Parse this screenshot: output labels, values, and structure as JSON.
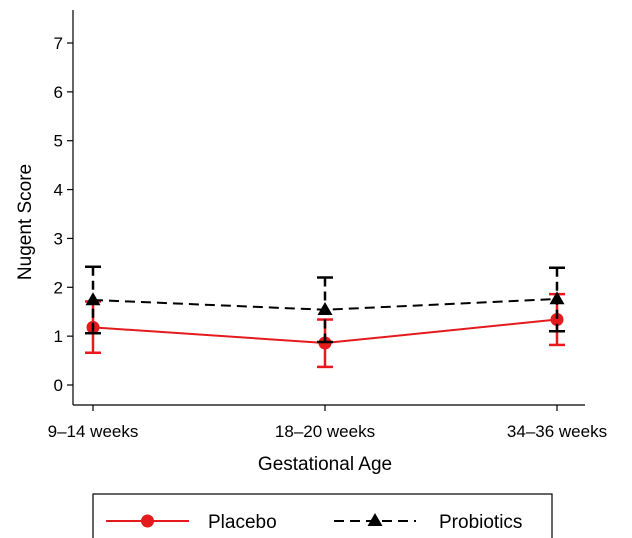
{
  "chart_data": {
    "type": "line",
    "xlabel": "Gestational Age",
    "ylabel": "Nugent  Score",
    "categories": [
      "9–14 weeks",
      "18–20 weeks",
      "34–36 weeks"
    ],
    "ylim": [
      -0.4,
      7.6
    ],
    "yticks": [
      0,
      1,
      2,
      3,
      4,
      5,
      6,
      7
    ],
    "grid": false,
    "legend_position": "bottom",
    "series": [
      {
        "name": "Placebo",
        "color": "#e41a1c",
        "line_style": "solid",
        "marker": "circle",
        "values": [
          1.18,
          0.86,
          1.34
        ],
        "error_low": [
          0.66,
          0.37,
          0.82
        ],
        "error_high": [
          1.71,
          1.34,
          1.86
        ]
      },
      {
        "name": "Probiotics",
        "color": "#000000",
        "line_style": "dashed",
        "marker": "triangle",
        "values": [
          1.74,
          1.54,
          1.76
        ],
        "error_low": [
          1.06,
          0.88,
          1.1
        ],
        "error_high": [
          2.42,
          2.2,
          2.4
        ]
      }
    ]
  }
}
